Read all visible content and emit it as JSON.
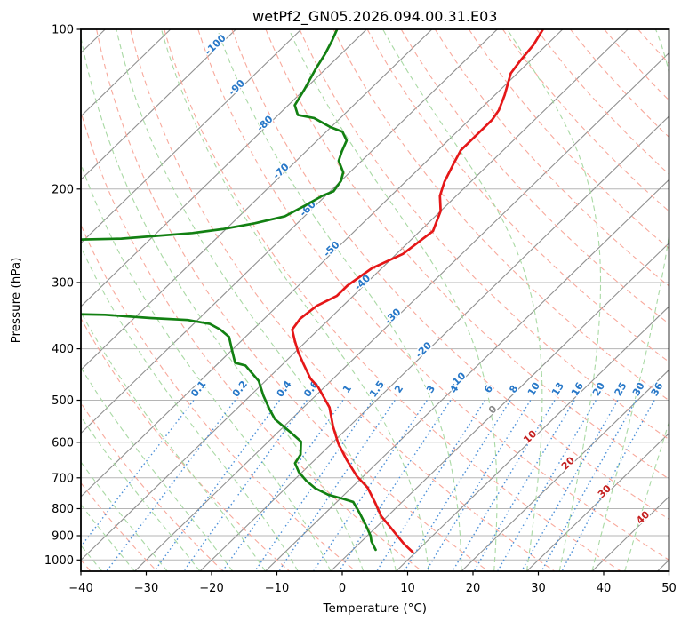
{
  "chart_data": {
    "type": "skewt_log_p",
    "title": "wetPf2_GN05.2026.094.00.31.E03",
    "xlabel": "Temperature (°C)",
    "ylabel": "Pressure (hPa)",
    "xlim": [
      -40,
      50
    ],
    "ylim": [
      1050,
      100
    ],
    "x_ticks": [
      -40,
      -30,
      -20,
      -10,
      0,
      10,
      20,
      30,
      40,
      50
    ],
    "y_ticks": [
      100,
      200,
      300,
      400,
      500,
      600,
      700,
      800,
      900,
      1000
    ],
    "skew_deg": 45,
    "grid": true,
    "colors": {
      "temperature": "#e51718",
      "dewpoint": "#128012",
      "isotherm": "#909090",
      "grid": "#b5b5b5",
      "dry_adiabat": "#f8a99c",
      "moist_adiabat": "#a9d9a4",
      "mixing_line": "#4b8fd8",
      "label_neg": "#2878c8",
      "label_zero": "#8a8a8a",
      "label_pos": "#c42020",
      "axis": "#000000"
    },
    "isotherms": {
      "start": -160,
      "end": 50,
      "step": 10,
      "labels": [
        {
          "t": -100,
          "p": 108
        },
        {
          "t": -90,
          "p": 130
        },
        {
          "t": -80,
          "p": 152
        },
        {
          "t": -70,
          "p": 187
        },
        {
          "t": -60,
          "p": 220
        },
        {
          "t": -50,
          "p": 262
        },
        {
          "t": -40,
          "p": 303
        },
        {
          "t": -30,
          "p": 351
        },
        {
          "t": -20,
          "p": 406
        },
        {
          "t": -10,
          "p": 463
        },
        {
          "t": 0,
          "p": 526
        },
        {
          "t": 10,
          "p": 592
        },
        {
          "t": 20,
          "p": 664
        },
        {
          "t": 30,
          "p": 750
        },
        {
          "t": 40,
          "p": 840
        }
      ]
    },
    "dry_adiabats": {
      "theta_start": -40,
      "theta_end": 200,
      "step": 10
    },
    "moist_adiabats": {
      "t0_start": -60,
      "t0_end": 45,
      "step": 5
    },
    "mixing_ratio": {
      "values": [
        0.1,
        0.2,
        0.4,
        0.6,
        1,
        1.5,
        2,
        3,
        4,
        6,
        8,
        10,
        13,
        16,
        20,
        25,
        30,
        36
      ],
      "p_top": 500,
      "p_bottom": 1050,
      "label_p": 480
    },
    "series": [
      {
        "name": "temperature",
        "points": [
          [
            100,
            -53
          ],
          [
            107,
            -52
          ],
          [
            115,
            -51.5
          ],
          [
            121,
            -51
          ],
          [
            133,
            -48.5
          ],
          [
            142,
            -47
          ],
          [
            148,
            -46.5
          ],
          [
            158,
            -46.5
          ],
          [
            169,
            -46.5
          ],
          [
            179,
            -45.5
          ],
          [
            194,
            -44
          ],
          [
            206,
            -42.5
          ],
          [
            220,
            -40
          ],
          [
            240,
            -38
          ],
          [
            265,
            -39
          ],
          [
            282,
            -41.5
          ],
          [
            304,
            -42.5
          ],
          [
            318,
            -42.5
          ],
          [
            332,
            -44
          ],
          [
            351,
            -44.5
          ],
          [
            368,
            -44
          ],
          [
            385,
            -42
          ],
          [
            406,
            -39.5
          ],
          [
            426,
            -37
          ],
          [
            455,
            -33.5
          ],
          [
            472,
            -31
          ],
          [
            516,
            -26
          ],
          [
            560,
            -22.5
          ],
          [
            603,
            -19
          ],
          [
            649,
            -15
          ],
          [
            695,
            -11
          ],
          [
            731,
            -7.5
          ],
          [
            780,
            -4
          ],
          [
            826,
            -1
          ],
          [
            865,
            2
          ],
          [
            899,
            4.5
          ],
          [
            934,
            7
          ],
          [
            966,
            9.5
          ]
        ]
      },
      {
        "name": "dewpoint",
        "segments": [
          [
            [
              100,
              -84.5
            ],
            [
              105,
              -83.5
            ],
            [
              111,
              -82.5
            ],
            [
              119,
              -81.5
            ],
            [
              130,
              -80
            ],
            [
              139,
              -79
            ],
            [
              145,
              -77
            ],
            [
              147,
              -74
            ],
            [
              153,
              -70
            ],
            [
              156,
              -67.5
            ],
            [
              162,
              -65.5
            ],
            [
              170,
              -64.5
            ],
            [
              177,
              -63.5
            ],
            [
              186,
              -61
            ],
            [
              193,
              -60
            ],
            [
              202,
              -59.5
            ],
            [
              206,
              -60.5
            ],
            [
              214,
              -61.5
            ],
            [
              225,
              -63
            ],
            [
              232,
              -66.5
            ],
            [
              238,
              -70.5
            ],
            [
              242,
              -74.5
            ],
            [
              248,
              -84.5
            ],
            [
              250,
              -97
            ]
          ],
          [
            [
              343,
              -86
            ],
            [
              345,
              -75
            ],
            [
              350,
              -67.5
            ],
            [
              353,
              -61.5
            ],
            [
              359,
              -57.5
            ],
            [
              368,
              -55
            ],
            [
              380,
              -52.5
            ],
            [
              402,
              -50
            ],
            [
              425,
              -47.5
            ],
            [
              430,
              -45.5
            ],
            [
              460,
              -41
            ],
            [
              490,
              -38
            ],
            [
              519,
              -35
            ],
            [
              543,
              -32.5
            ],
            [
              575,
              -28
            ],
            [
              598,
              -25
            ],
            [
              633,
              -23
            ],
            [
              657,
              -22.5
            ],
            [
              683,
              -20.5
            ],
            [
              709,
              -18
            ],
            [
              732,
              -15.5
            ],
            [
              753,
              -12.5
            ],
            [
              767,
              -9.5
            ],
            [
              777,
              -7.5
            ],
            [
              812,
              -5
            ],
            [
              858,
              -2
            ],
            [
              900,
              0.5
            ],
            [
              922,
              1.5
            ],
            [
              957,
              3.5
            ]
          ]
        ]
      }
    ]
  }
}
